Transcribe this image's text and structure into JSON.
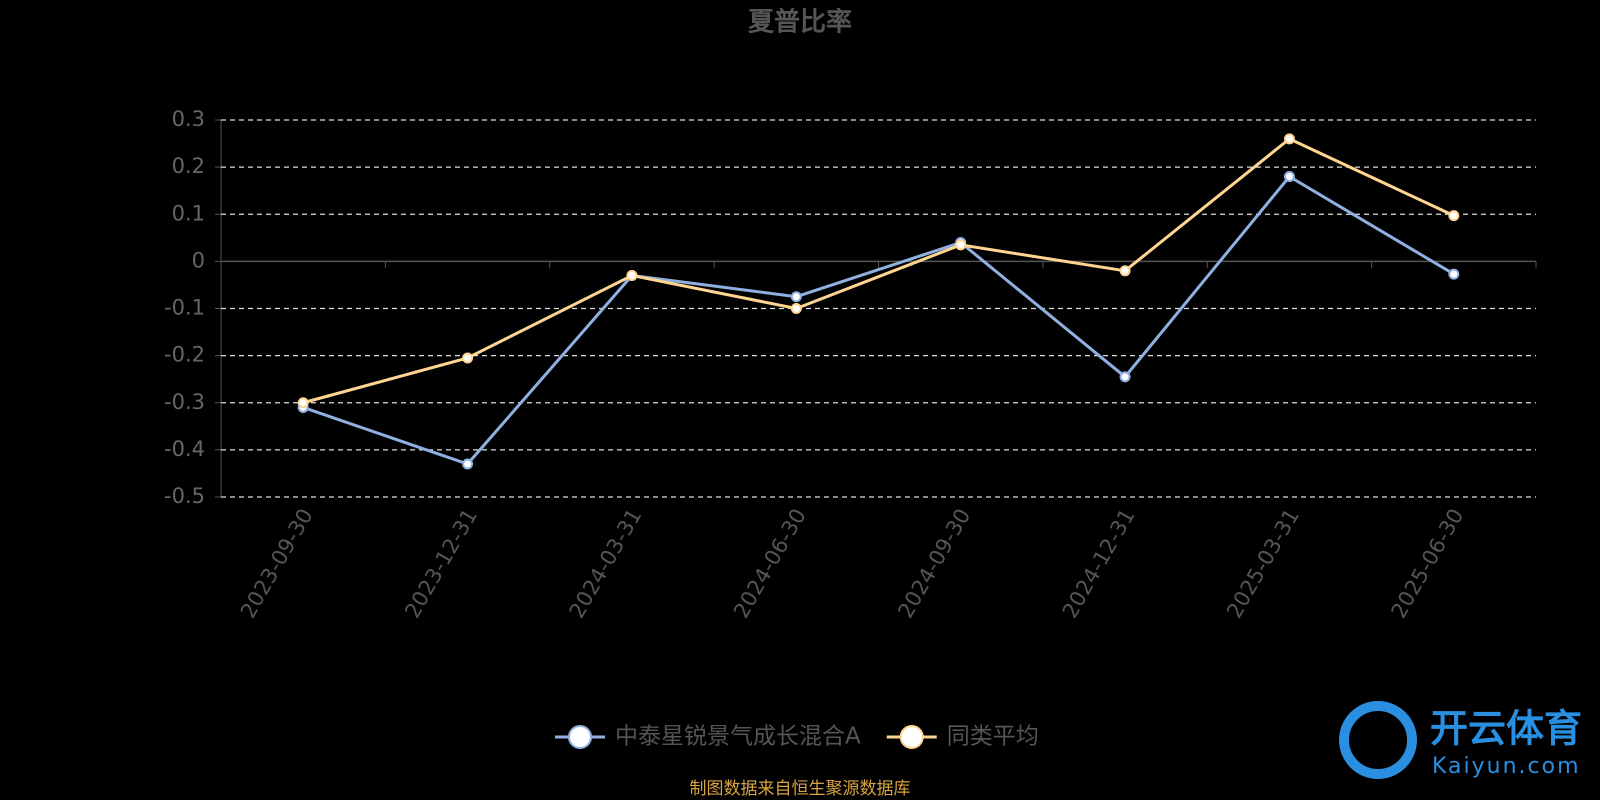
{
  "chart_data": {
    "type": "line",
    "title": "夏普比率",
    "categories": [
      "2023-09-30",
      "2023-12-31",
      "2024-03-31",
      "2024-06-30",
      "2024-09-30",
      "2024-12-31",
      "2025-03-31",
      "2025-06-30"
    ],
    "series": [
      {
        "name": "中泰星锐景气成长混合A",
        "color": "#8fb0e0",
        "values": [
          -0.31,
          -0.43,
          -0.03,
          -0.075,
          0.04,
          -0.245,
          0.18,
          -0.027
        ]
      },
      {
        "name": "同类平均",
        "color": "#ffd591",
        "values": [
          -0.3,
          -0.205,
          -0.03,
          -0.1,
          0.035,
          -0.02,
          0.26,
          0.097
        ]
      }
    ],
    "ylim": [
      -0.5,
      0.3
    ],
    "yticks": [
      -0.5,
      -0.4,
      -0.3,
      -0.2,
      -0.1,
      0,
      0.1,
      0.2,
      0.3
    ],
    "grid": true,
    "legend": "bottom",
    "source": "制图数据来自恒生聚源数据库",
    "watermark": {
      "brand": "开云体育",
      "site": "Kaiyun.com"
    }
  }
}
